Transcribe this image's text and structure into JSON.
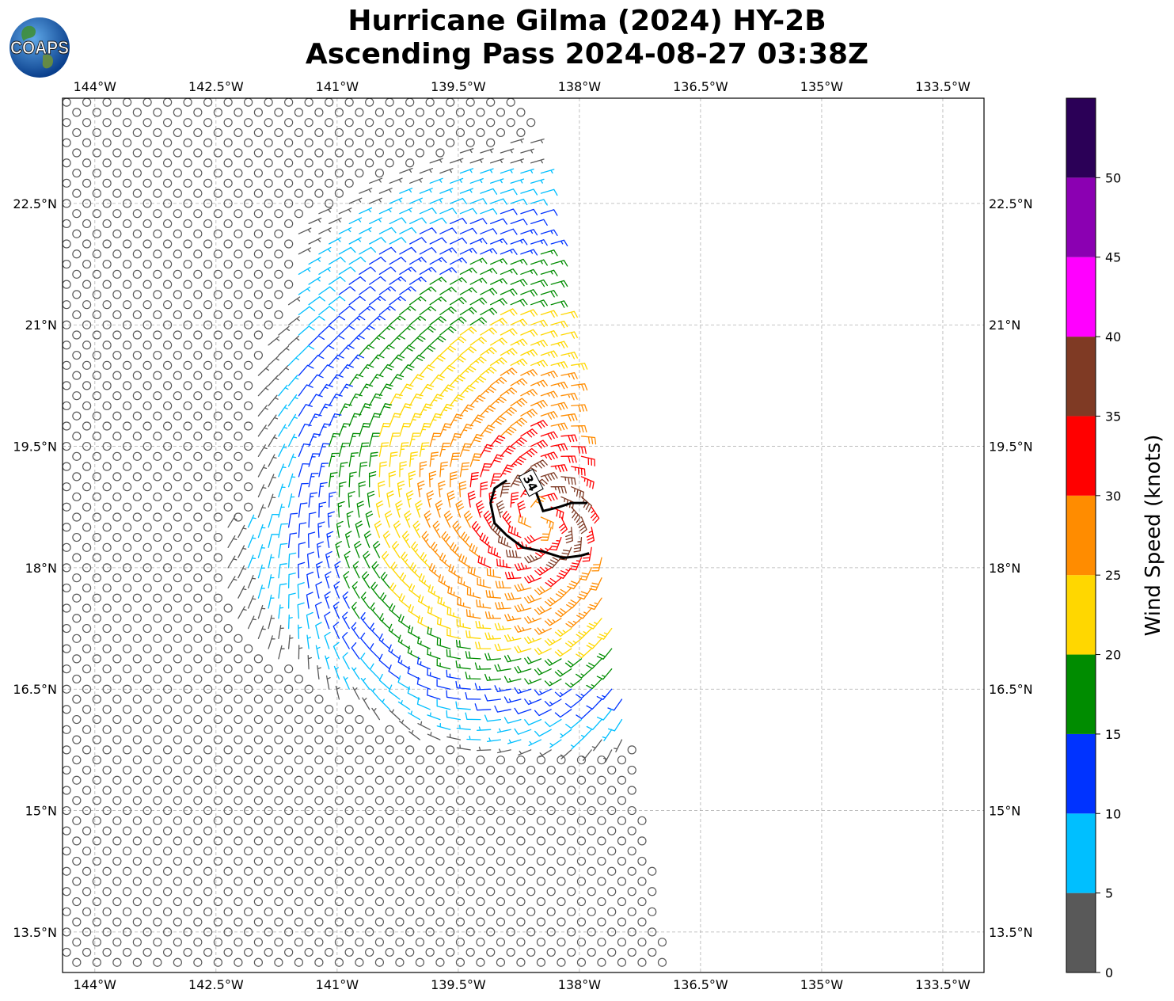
{
  "header": {
    "title_line1": "Hurricane Gilma (2024) HY-2B",
    "title_line2": "Ascending Pass 2024-08-27 03:38Z"
  },
  "logo": {
    "text": "COAPS",
    "icon": "globe-icon"
  },
  "chart_data": {
    "type": "wind-barb-map",
    "xlim": [
      -144.4,
      -132.99
    ],
    "ylim": [
      13.0,
      23.8
    ],
    "x_ticks": [
      -144,
      -142.5,
      -141,
      -139.5,
      -138,
      -136.5,
      -135,
      -133.5
    ],
    "x_tick_labels": [
      "144°W",
      "142.5°W",
      "141°W",
      "139.5°W",
      "138°W",
      "136.5°W",
      "135°W",
      "133.5°W"
    ],
    "y_ticks": [
      13.5,
      15,
      16.5,
      18,
      19.5,
      21,
      22.5
    ],
    "y_tick_labels": [
      "13.5°N",
      "15°N",
      "16.5°N",
      "18°N",
      "19.5°N",
      "21°N",
      "22.5°N"
    ],
    "grid": true,
    "center": {
      "lon": -138.5,
      "lat": 18.6
    },
    "contour": {
      "level_label": "34",
      "path": [
        [
          -138.9,
          19.08
        ],
        [
          -139.05,
          18.98
        ],
        [
          -139.1,
          18.8
        ],
        [
          -139.05,
          18.55
        ],
        [
          -138.9,
          18.4
        ],
        [
          -138.7,
          18.25
        ],
        [
          -138.45,
          18.2
        ],
        [
          -138.2,
          18.12
        ],
        [
          -137.98,
          18.15
        ],
        [
          -137.88,
          18.18
        ]
      ],
      "hook": [
        [
          -138.55,
          18.97
        ],
        [
          -138.45,
          18.7
        ],
        [
          -138.25,
          18.75
        ],
        [
          -138.1,
          18.8
        ],
        [
          -137.9,
          18.8
        ]
      ]
    },
    "colorbar": {
      "label": "Wind Speed (knots)",
      "ticks": [
        0,
        5,
        10,
        15,
        20,
        25,
        30,
        35,
        40,
        45,
        50
      ],
      "tick_labels": [
        "0",
        "5",
        "10",
        "15",
        "20",
        "25",
        "30",
        "35",
        "40",
        "45",
        "50"
      ],
      "bins": [
        {
          "min": 0,
          "max": 5,
          "color": "#595959"
        },
        {
          "min": 5,
          "max": 10,
          "color": "#00bfff"
        },
        {
          "min": 10,
          "max": 15,
          "color": "#0033ff"
        },
        {
          "min": 15,
          "max": 20,
          "color": "#008c00"
        },
        {
          "min": 20,
          "max": 25,
          "color": "#ffd700"
        },
        {
          "min": 25,
          "max": 30,
          "color": "#ff8c00"
        },
        {
          "min": 30,
          "max": 35,
          "color": "#ff0000"
        },
        {
          "min": 35,
          "max": 40,
          "color": "#7f3a24"
        },
        {
          "min": 40,
          "max": 45,
          "color": "#ff00ff"
        },
        {
          "min": 45,
          "max": 50,
          "color": "#8b00b2"
        },
        {
          "min": 50,
          "max": 55,
          "color": "#2b0057"
        }
      ]
    },
    "swath": {
      "top_lat": 23.8,
      "bottom_lat": 13.0,
      "east_lon_top": -138.62,
      "east_lon_bottom": -136.9,
      "west_lon": -144.4,
      "lat_step": 0.125,
      "lon_step": 0.125
    }
  }
}
